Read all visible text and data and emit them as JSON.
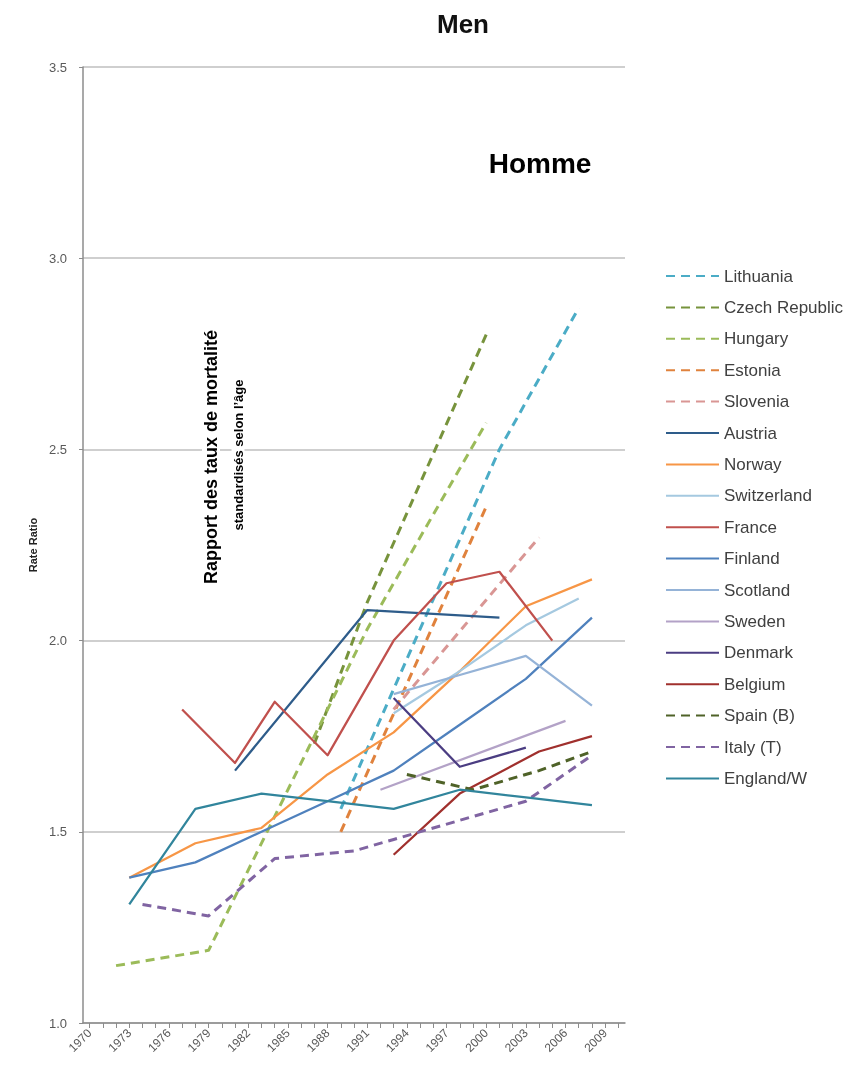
{
  "chart_data": {
    "type": "line",
    "title": "Men",
    "ylabel": "Rate Ratio",
    "annotations": [
      "Homme",
      "Rapport des taux de mortalité",
      "standardisés selon l’âge"
    ],
    "xlim": [
      1969.5,
      2010.5
    ],
    "xticks": [
      1970,
      {
        "value": 1971,
        "label": null
      },
      {
        "value": 1972,
        "label": null
      },
      1973,
      {
        "value": 1974,
        "label": null
      },
      {
        "value": 1975,
        "label": null
      },
      1976,
      {
        "value": 1977,
        "label": null
      },
      {
        "value": 1978,
        "label": null
      },
      1979,
      {
        "value": 1980,
        "label": null
      },
      {
        "value": 1981,
        "label": null
      },
      1982,
      {
        "value": 1983,
        "label": null
      },
      {
        "value": 1984,
        "label": null
      },
      1985,
      {
        "value": 1986,
        "label": null
      },
      {
        "value": 1987,
        "label": null
      },
      1988,
      {
        "value": 1989,
        "label": null
      },
      {
        "value": 1990,
        "label": null
      },
      1991,
      {
        "value": 1992,
        "label": null
      },
      {
        "value": 1993,
        "label": null
      },
      1994,
      {
        "value": 1995,
        "label": null
      },
      {
        "value": 1996,
        "label": null
      },
      1997,
      {
        "value": 1998,
        "label": null
      },
      {
        "value": 1999,
        "label": null
      },
      2000,
      {
        "value": 2001,
        "label": null
      },
      {
        "value": 2002,
        "label": null
      },
      2003,
      {
        "value": 2004,
        "label": null
      },
      {
        "value": 2005,
        "label": null
      },
      2006,
      {
        "value": 2007,
        "label": null
      },
      {
        "value": 2008,
        "label": null
      },
      2009,
      {
        "value": 2010,
        "label": null
      }
    ],
    "ylim": [
      1,
      3.5
    ],
    "yticks": [
      {
        "value": 1,
        "label": "1.0"
      },
      1.5,
      {
        "value": 2,
        "label": "2.0"
      },
      2.5,
      {
        "value": 3,
        "label": "3.0"
      },
      3.5
    ],
    "grid": "y",
    "legend": "right",
    "marker": "none",
    "line_style": "solid",
    "series": [
      {
        "name": "Lithuania",
        "color": "#4bacc6",
        "line_style": "dashed",
        "x": [
          1989,
          2001,
          2007
        ],
        "values": [
          1.56,
          2.5,
          2.87
        ]
      },
      {
        "name": "Czech Republic",
        "color": "#77933c",
        "line_style": "dashed",
        "x": [
          1987,
          1991,
          2000
        ],
        "values": [
          1.73,
          2.1,
          2.8
        ]
      },
      {
        "name": "Hungary",
        "color": "#9bbb59",
        "line_style": "dashed",
        "x": [
          1972,
          1979,
          1991,
          2000
        ],
        "values": [
          1.15,
          1.19,
          2.03,
          2.57
        ]
      },
      {
        "name": "Estonia",
        "color": "#e0823d",
        "line_style": "dashed",
        "x": [
          1989,
          2000
        ],
        "values": [
          1.5,
          2.35
        ]
      },
      {
        "name": "Slovenia",
        "color": "#d99694",
        "line_style": "dashed",
        "x": [
          1993,
          2004
        ],
        "values": [
          1.82,
          2.27
        ]
      },
      {
        "name": "Austria",
        "color": "#2e5c8a",
        "x": [
          1981,
          1991,
          2001
        ],
        "values": [
          1.66,
          2.08,
          2.06
        ]
      },
      {
        "name": "Norway",
        "color": "#f79646",
        "x": [
          1973,
          1978,
          1983,
          1988,
          1993,
          1998,
          2003,
          2008
        ],
        "values": [
          1.38,
          1.47,
          1.51,
          1.65,
          1.76,
          1.92,
          2.09,
          2.16
        ]
      },
      {
        "name": "Switzerland",
        "color": "#a5c9e0",
        "x": [
          1993,
          1998,
          2003,
          2007
        ],
        "values": [
          1.81,
          1.92,
          2.04,
          2.11
        ]
      },
      {
        "name": "France",
        "color": "#c0504d",
        "x": [
          1977,
          1981,
          1984,
          1988,
          1993,
          1997,
          2001,
          2005
        ],
        "values": [
          1.82,
          1.68,
          1.84,
          1.7,
          2.0,
          2.15,
          2.18,
          2.0
        ]
      },
      {
        "name": "Finland",
        "color": "#4f81bd",
        "x": [
          1973,
          1978,
          1983,
          1988,
          1993,
          1998,
          2003,
          2008
        ],
        "values": [
          1.38,
          1.42,
          1.5,
          1.58,
          1.66,
          1.78,
          1.9,
          2.06
        ]
      },
      {
        "name": "Scotland",
        "color": "#95b3d7",
        "x": [
          1993,
          1998,
          2003,
          2008
        ],
        "values": [
          1.86,
          1.91,
          1.96,
          1.83
        ]
      },
      {
        "name": "Sweden",
        "color": "#b3a2c7",
        "x": [
          1992,
          2006
        ],
        "values": [
          1.61,
          1.79
        ]
      },
      {
        "name": "Denmark",
        "color": "#4b3d82",
        "x": [
          1993,
          1998,
          2003
        ],
        "values": [
          1.85,
          1.67,
          1.72
        ]
      },
      {
        "name": "Belgium",
        "color": "#a0302d",
        "x": [
          1993,
          1998,
          2004,
          2008
        ],
        "values": [
          1.44,
          1.6,
          1.71,
          1.75
        ]
      },
      {
        "name": "Spain (B)",
        "color": "#4f6228",
        "line_style": "dashed",
        "x": [
          1994,
          1999,
          2004,
          2008
        ],
        "values": [
          1.65,
          1.61,
          1.66,
          1.71
        ]
      },
      {
        "name": "Italy (T)",
        "color": "#8064a2",
        "line_style": "dashed",
        "x": [
          1974,
          1979,
          1984,
          1990,
          1993,
          1998,
          2003,
          2008
        ],
        "values": [
          1.31,
          1.28,
          1.43,
          1.45,
          1.48,
          1.53,
          1.58,
          1.7
        ]
      },
      {
        "name": "England/W",
        "color": "#31859c",
        "x": [
          1973,
          1978,
          1983,
          1988,
          1993,
          1998,
          2003,
          2008
        ],
        "values": [
          1.31,
          1.56,
          1.6,
          1.58,
          1.56,
          1.61,
          1.59,
          1.57
        ]
      }
    ]
  }
}
